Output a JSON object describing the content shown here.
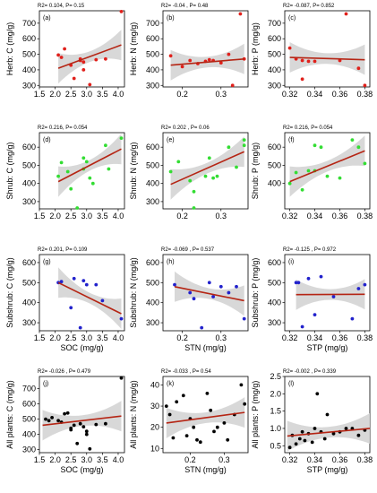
{
  "figure": {
    "title": "",
    "colors": {
      "red": "#e0201b",
      "green": "#33dd33",
      "blue": "#2222cc",
      "black": "#000000",
      "fit": "#b52514",
      "ribbon": "#d4d4d4",
      "pink_fit": "#f0a0b8"
    }
  },
  "chart_data": [
    {
      "id": "a",
      "type": "scatter",
      "panel_label": "(a)",
      "stats": "R2= 0.104, P= 0.15",
      "xlabel": "",
      "ylabel": "Herb: C (mg/g)",
      "xlim": [
        1.5,
        4.2
      ],
      "ylim": [
        290,
        780
      ],
      "xticks": [
        "1.5",
        "2.0",
        "2.5",
        "3.0",
        "3.5",
        "4.0"
      ],
      "xtick_values": [
        1.5,
        2.0,
        2.5,
        3.0,
        3.5,
        4.0
      ],
      "yticks": [
        "300",
        "400",
        "500",
        "600",
        "700"
      ],
      "ytick_values": [
        300,
        400,
        500,
        600,
        700
      ],
      "point_color": "red",
      "points": [
        [
          2.1,
          495
        ],
        [
          2.2,
          480
        ],
        [
          2.3,
          535
        ],
        [
          2.5,
          430
        ],
        [
          2.6,
          345
        ],
        [
          2.8,
          470
        ],
        [
          2.8,
          460
        ],
        [
          2.9,
          450
        ],
        [
          2.9,
          400
        ],
        [
          3.1,
          305
        ],
        [
          3.3,
          465
        ],
        [
          3.6,
          470
        ],
        [
          4.1,
          775
        ]
      ],
      "fit": [
        [
          2.1,
          410
        ],
        [
          4.1,
          560
        ]
      ]
    },
    {
      "id": "b",
      "type": "scatter",
      "panel_label": "(b)",
      "stats": "R2= -0.04 , P= 0.48",
      "xlabel": "",
      "ylabel": "Herb: N (mg/g)",
      "xlim": [
        0.15,
        0.37
      ],
      "ylim": [
        290,
        780
      ],
      "xticks": [
        "0.2",
        "0.3"
      ],
      "xtick_values": [
        0.2,
        0.3
      ],
      "yticks": [
        "300",
        "400",
        "500",
        "600",
        "700"
      ],
      "ytick_values": [
        300,
        400,
        500,
        600,
        700
      ],
      "point_color": "red",
      "points": [
        [
          0.17,
          490
        ],
        [
          0.2,
          420
        ],
        [
          0.22,
          460
        ],
        [
          0.24,
          440
        ],
        [
          0.26,
          455
        ],
        [
          0.27,
          465
        ],
        [
          0.28,
          460
        ],
        [
          0.3,
          445
        ],
        [
          0.32,
          500
        ],
        [
          0.33,
          300
        ],
        [
          0.35,
          760
        ],
        [
          0.36,
          470
        ]
      ],
      "fit": [
        [
          0.17,
          430
        ],
        [
          0.36,
          470
        ]
      ]
    },
    {
      "id": "c",
      "type": "scatter",
      "panel_label": "(c)",
      "stats": "R2= -0.087, P= 0.852",
      "xlabel": "",
      "ylabel": "Herb: P (mg/g)",
      "xlim": [
        0.316,
        0.384
      ],
      "ylim": [
        290,
        780
      ],
      "xticks": [
        "0.32",
        "0.34",
        "0.36",
        "0.38"
      ],
      "xtick_values": [
        0.32,
        0.34,
        0.36,
        0.38
      ],
      "yticks": [
        "300",
        "400",
        "500",
        "600",
        "700"
      ],
      "ytick_values": [
        300,
        400,
        500,
        600,
        700
      ],
      "point_color": "red",
      "points": [
        [
          0.32,
          540
        ],
        [
          0.325,
          470
        ],
        [
          0.33,
          460
        ],
        [
          0.335,
          455
        ],
        [
          0.34,
          455
        ],
        [
          0.33,
          340
        ],
        [
          0.36,
          460
        ],
        [
          0.365,
          760
        ],
        [
          0.375,
          410
        ],
        [
          0.38,
          300
        ]
      ],
      "fit": [
        [
          0.32,
          480
        ],
        [
          0.38,
          465
        ]
      ]
    },
    {
      "id": "d",
      "type": "scatter",
      "panel_label": "(d)",
      "stats": "R2= 0.216, P= 0.054",
      "xlabel": "",
      "ylabel": "Shrub: C (mg/g)",
      "xlim": [
        1.5,
        4.2
      ],
      "ylim": [
        260,
        680
      ],
      "xticks": [
        "1.5",
        "2.0",
        "2.5",
        "3.0",
        "3.5",
        "4.0"
      ],
      "xtick_values": [
        1.5,
        2.0,
        2.5,
        3.0,
        3.5,
        4.0
      ],
      "yticks": [
        "300",
        "400",
        "500",
        "600"
      ],
      "ytick_values": [
        300,
        400,
        500,
        600
      ],
      "point_color": "green",
      "points": [
        [
          2.1,
          440
        ],
        [
          2.2,
          515
        ],
        [
          2.4,
          465
        ],
        [
          2.5,
          370
        ],
        [
          2.7,
          265
        ],
        [
          2.9,
          480
        ],
        [
          2.9,
          540
        ],
        [
          3.0,
          520
        ],
        [
          3.1,
          430
        ],
        [
          3.2,
          400
        ],
        [
          3.6,
          610
        ],
        [
          3.7,
          480
        ],
        [
          4.1,
          650
        ]
      ],
      "fit": [
        [
          2.1,
          410
        ],
        [
          4.1,
          590
        ]
      ]
    },
    {
      "id": "e",
      "type": "scatter",
      "panel_label": "(e)",
      "stats": "R2= 0.202 , P= 0.06",
      "xlabel": "",
      "ylabel": "Shrub: N (mg/g)",
      "xlim": [
        0.15,
        0.37
      ],
      "ylim": [
        260,
        680
      ],
      "xticks": [
        "0.2",
        "0.3"
      ],
      "xtick_values": [
        0.2,
        0.3
      ],
      "yticks": [
        "300",
        "400",
        "500",
        "600"
      ],
      "ytick_values": [
        300,
        400,
        500,
        600
      ],
      "point_color": "green",
      "points": [
        [
          0.17,
          465
        ],
        [
          0.19,
          520
        ],
        [
          0.22,
          415
        ],
        [
          0.23,
          355
        ],
        [
          0.23,
          265
        ],
        [
          0.26,
          440
        ],
        [
          0.27,
          540
        ],
        [
          0.28,
          430
        ],
        [
          0.29,
          440
        ],
        [
          0.32,
          600
        ],
        [
          0.34,
          490
        ],
        [
          0.36,
          640
        ],
        [
          0.36,
          610
        ]
      ],
      "fit": [
        [
          0.17,
          395
        ],
        [
          0.36,
          575
        ]
      ]
    },
    {
      "id": "f",
      "type": "scatter",
      "panel_label": "(f)",
      "stats": "R2= 0.216, P= 0.054",
      "xlabel": "",
      "ylabel": "Shrub: P (mg/g)",
      "xlim": [
        0.316,
        0.384
      ],
      "ylim": [
        260,
        680
      ],
      "xticks": [
        "0.32",
        "0.34",
        "0.36",
        "0.38"
      ],
      "xtick_values": [
        0.32,
        0.34,
        0.36,
        0.38
      ],
      "yticks": [
        "400",
        "500",
        "600"
      ],
      "ytick_values": [
        400,
        500,
        600
      ],
      "point_color": "green",
      "points": [
        [
          0.32,
          400
        ],
        [
          0.325,
          460
        ],
        [
          0.33,
          365
        ],
        [
          0.335,
          470
        ],
        [
          0.34,
          470
        ],
        [
          0.34,
          610
        ],
        [
          0.345,
          600
        ],
        [
          0.35,
          440
        ],
        [
          0.36,
          430
        ],
        [
          0.37,
          640
        ],
        [
          0.38,
          510
        ],
        [
          0.375,
          600
        ]
      ],
      "fit": [
        [
          0.32,
          410
        ],
        [
          0.38,
          580
        ]
      ]
    },
    {
      "id": "g",
      "type": "scatter",
      "panel_label": "(g)",
      "stats": "R2= 0.201, P= 0.109",
      "xlabel": "SOC (mg/g)",
      "ylabel": "Subshrub: C (mg/g)",
      "xlim": [
        1.5,
        4.2
      ],
      "ylim": [
        260,
        640
      ],
      "xticks": [
        "1.5",
        "2.0",
        "2.5",
        "3.0",
        "3.5",
        "4.0"
      ],
      "xtick_values": [
        1.5,
        2.0,
        2.5,
        3.0,
        3.5,
        4.0
      ],
      "yticks": [
        "300",
        "400",
        "500",
        "600"
      ],
      "ytick_values": [
        300,
        400,
        500,
        600
      ],
      "point_color": "blue",
      "points": [
        [
          2.1,
          500
        ],
        [
          2.2,
          505
        ],
        [
          2.5,
          375
        ],
        [
          2.6,
          520
        ],
        [
          2.8,
          275
        ],
        [
          2.9,
          510
        ],
        [
          3.0,
          490
        ],
        [
          3.3,
          490
        ],
        [
          3.5,
          410
        ],
        [
          4.1,
          320
        ]
      ],
      "fit": [
        [
          2.1,
          500
        ],
        [
          4.1,
          345
        ]
      ]
    },
    {
      "id": "h",
      "type": "scatter",
      "panel_label": "(h)",
      "stats": "R2= -0.069 , P= 0.537",
      "xlabel": "STN (mg/g)",
      "ylabel": "Subshrub: N (mg/g)",
      "xlim": [
        0.15,
        0.37
      ],
      "ylim": [
        260,
        640
      ],
      "xticks": [
        "0.2",
        "0.3"
      ],
      "xtick_values": [
        0.2,
        0.3
      ],
      "yticks": [
        "300",
        "400",
        "500",
        "600"
      ],
      "ytick_values": [
        300,
        400,
        500,
        600
      ],
      "point_color": "blue",
      "points": [
        [
          0.18,
          490
        ],
        [
          0.22,
          450
        ],
        [
          0.23,
          420
        ],
        [
          0.25,
          275
        ],
        [
          0.27,
          500
        ],
        [
          0.28,
          430
        ],
        [
          0.3,
          480
        ],
        [
          0.32,
          450
        ],
        [
          0.34,
          480
        ],
        [
          0.36,
          320
        ]
      ],
      "fit": [
        [
          0.18,
          480
        ],
        [
          0.36,
          410
        ]
      ]
    },
    {
      "id": "i",
      "type": "scatter",
      "panel_label": "(i)",
      "stats": "R2= -0.125 , P= 0.972",
      "xlabel": "STP (mg/g)",
      "ylabel": "Subshrub: P (mg/g)",
      "xlim": [
        0.316,
        0.384
      ],
      "ylim": [
        260,
        640
      ],
      "xticks": [
        "0.32",
        "0.34",
        "0.36",
        "0.38"
      ],
      "xtick_values": [
        0.32,
        0.34,
        0.36,
        0.38
      ],
      "yticks": [
        "300",
        "400",
        "500",
        "600"
      ],
      "ytick_values": [
        300,
        400,
        500,
        600
      ],
      "point_color": "blue",
      "points": [
        [
          0.325,
          500
        ],
        [
          0.327,
          500
        ],
        [
          0.33,
          280
        ],
        [
          0.335,
          520
        ],
        [
          0.34,
          340
        ],
        [
          0.345,
          530
        ],
        [
          0.355,
          430
        ],
        [
          0.37,
          320
        ],
        [
          0.375,
          470
        ],
        [
          0.38,
          490
        ]
      ],
      "fit": [
        [
          0.325,
          440
        ],
        [
          0.38,
          442
        ]
      ]
    },
    {
      "id": "j",
      "type": "scatter",
      "panel_label": "(j)",
      "stats": "R2= -0.026 , P= 0.479",
      "xlabel": "SOC (mg/g)",
      "ylabel": "All plants: C (mg/g)",
      "xlim": [
        1.5,
        4.2
      ],
      "ylim": [
        280,
        780
      ],
      "xticks": [
        "1.5",
        "2.0",
        "2.5",
        "3.0",
        "3.5",
        "4.0"
      ],
      "xtick_values": [
        1.5,
        2.0,
        2.5,
        3.0,
        3.5,
        4.0
      ],
      "yticks": [
        "300",
        "400",
        "500",
        "600",
        "700"
      ],
      "ytick_values": [
        300,
        400,
        500,
        600,
        700
      ],
      "point_color": "black",
      "points": [
        [
          1.7,
          500
        ],
        [
          1.8,
          490
        ],
        [
          1.9,
          510
        ],
        [
          2.1,
          490
        ],
        [
          2.2,
          480
        ],
        [
          2.3,
          535
        ],
        [
          2.4,
          540
        ],
        [
          2.5,
          430
        ],
        [
          2.5,
          440
        ],
        [
          2.6,
          460
        ],
        [
          2.7,
          340
        ],
        [
          2.8,
          470
        ],
        [
          2.9,
          450
        ],
        [
          3.0,
          400
        ],
        [
          3.0,
          420
        ],
        [
          3.1,
          305
        ],
        [
          3.3,
          465
        ],
        [
          3.6,
          470
        ],
        [
          4.1,
          770
        ]
      ],
      "fit": [
        [
          1.6,
          460
        ],
        [
          4.1,
          520
        ]
      ]
    },
    {
      "id": "k",
      "type": "scatter",
      "panel_label": "(k)",
      "stats": "R2= -0.033 , P= 0.54",
      "xlabel": "STN (mg/g)",
      "ylabel": "All plants: N (mg/g)",
      "xlim": [
        0.12,
        0.37
      ],
      "ylim": [
        8,
        44
      ],
      "xticks": [
        "0.2",
        "0.3"
      ],
      "xtick_values": [
        0.2,
        0.3
      ],
      "yticks": [
        "10",
        "20",
        "30",
        "40"
      ],
      "ytick_values": [
        10,
        20,
        30,
        40
      ],
      "point_color": "black",
      "points": [
        [
          0.13,
          30
        ],
        [
          0.14,
          26
        ],
        [
          0.15,
          15
        ],
        [
          0.16,
          32
        ],
        [
          0.18,
          35
        ],
        [
          0.19,
          16
        ],
        [
          0.2,
          24
        ],
        [
          0.21,
          20
        ],
        [
          0.22,
          14
        ],
        [
          0.23,
          13
        ],
        [
          0.25,
          36
        ],
        [
          0.26,
          28
        ],
        [
          0.27,
          18
        ],
        [
          0.28,
          20
        ],
        [
          0.3,
          22
        ],
        [
          0.31,
          14
        ],
        [
          0.33,
          26
        ],
        [
          0.35,
          40
        ],
        [
          0.36,
          31
        ]
      ],
      "fit": [
        [
          0.13,
          22
        ],
        [
          0.36,
          27
        ]
      ]
    },
    {
      "id": "l",
      "type": "scatter",
      "panel_label": "(l)",
      "stats": "R2= -0.002 , P= 0.339",
      "xlabel": "STP (mg/g)",
      "ylabel": "All plants: P (mg/g)",
      "xlim": [
        0.316,
        0.384
      ],
      "ylim": [
        0.3,
        2.5
      ],
      "xticks": [
        "0.32",
        "0.34",
        "0.36",
        "0.38"
      ],
      "xtick_values": [
        0.32,
        0.34,
        0.36,
        0.38
      ],
      "yticks": [
        "0.5",
        "1.0",
        "1.5",
        "2.0",
        "2.5"
      ],
      "ytick_values": [
        0.5,
        1.0,
        1.5,
        2.0,
        2.5
      ],
      "point_color": "black",
      "points": [
        [
          0.32,
          0.45
        ],
        [
          0.322,
          0.8
        ],
        [
          0.325,
          0.55
        ],
        [
          0.328,
          0.7
        ],
        [
          0.33,
          0.9
        ],
        [
          0.332,
          0.65
        ],
        [
          0.335,
          0.85
        ],
        [
          0.338,
          0.6
        ],
        [
          0.34,
          1.0
        ],
        [
          0.342,
          2.0
        ],
        [
          0.345,
          0.9
        ],
        [
          0.348,
          0.7
        ],
        [
          0.35,
          1.4
        ],
        [
          0.355,
          0.85
        ],
        [
          0.36,
          0.9
        ],
        [
          0.365,
          1.0
        ],
        [
          0.37,
          1.0
        ],
        [
          0.375,
          0.8
        ],
        [
          0.38,
          0.95
        ]
      ],
      "fit": [
        [
          0.318,
          0.78
        ],
        [
          0.384,
          1.0
        ]
      ]
    }
  ]
}
